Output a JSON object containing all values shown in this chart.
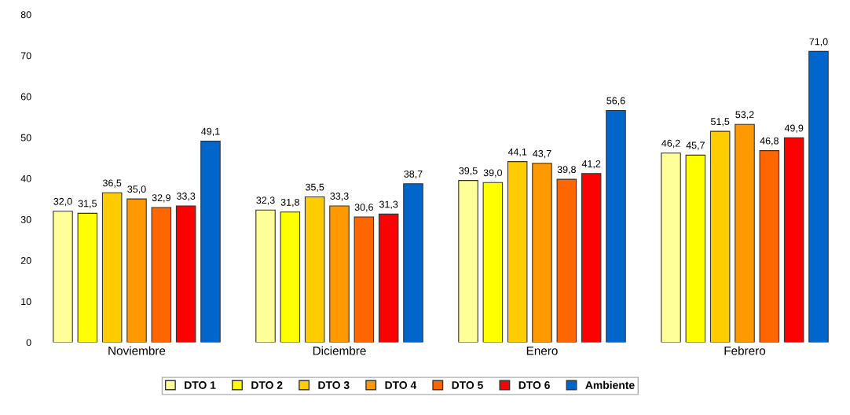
{
  "chart_data": {
    "type": "bar",
    "categories": [
      "Noviembre",
      "Diciembre",
      "Enero",
      "Febrero"
    ],
    "series": [
      {
        "name": "DTO 1",
        "color": "#ffff99",
        "values": [
          32.0,
          32.3,
          39.5,
          46.2
        ],
        "value_labels": [
          "32,0",
          "32,3",
          "39,5",
          "46,2"
        ]
      },
      {
        "name": "DTO 2",
        "color": "#ffff00",
        "values": [
          31.5,
          31.8,
          39.0,
          45.7
        ],
        "value_labels": [
          "31,5",
          "31,8",
          "39,0",
          "45,7"
        ]
      },
      {
        "name": "DTO 3",
        "color": "#ffcc00",
        "values": [
          36.5,
          35.5,
          44.1,
          51.5
        ],
        "value_labels": [
          "36,5",
          "35,5",
          "44,1",
          "51,5"
        ]
      },
      {
        "name": "DTO 4",
        "color": "#ff9900",
        "values": [
          35.0,
          33.3,
          43.7,
          53.2
        ],
        "value_labels": [
          "35,0",
          "33,3",
          "43,7",
          "53,2"
        ]
      },
      {
        "name": "DTO 5",
        "color": "#ff6600",
        "values": [
          32.9,
          30.6,
          39.8,
          46.8
        ],
        "value_labels": [
          "32,9",
          "30,6",
          "39,8",
          "46,8"
        ]
      },
      {
        "name": "DTO 6",
        "color": "#ff0000",
        "values": [
          33.3,
          31.3,
          41.2,
          49.9
        ],
        "value_labels": [
          "33,3",
          "31,3",
          "41,2",
          "49,9"
        ]
      },
      {
        "name": "Ambiente",
        "color": "#0066cc",
        "values": [
          49.1,
          38.7,
          56.6,
          71.0
        ],
        "value_labels": [
          "49,1",
          "38,7",
          "56,6",
          "71,0"
        ]
      }
    ],
    "ylim": [
      0,
      80
    ],
    "yticks": [
      0,
      10,
      20,
      30,
      40,
      50,
      60,
      70,
      80
    ],
    "grid": false,
    "legend": "bottom"
  }
}
